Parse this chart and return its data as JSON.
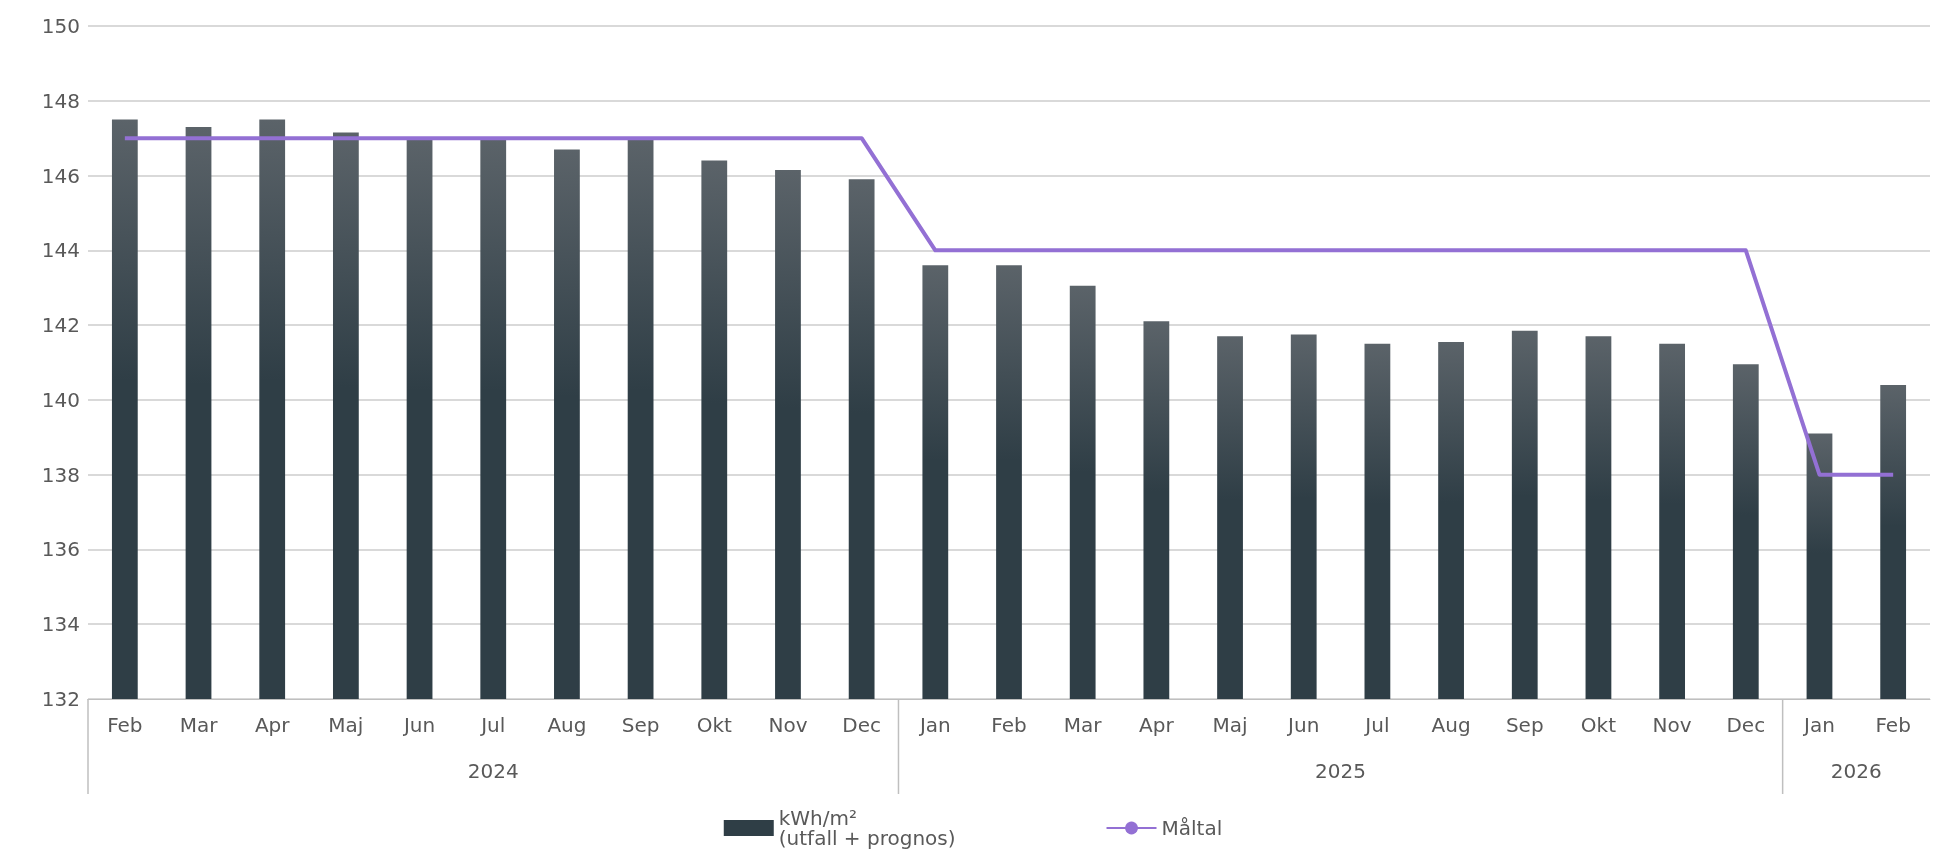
{
  "chart_data": {
    "type": "bar",
    "categories": [
      "Feb",
      "Mar",
      "Apr",
      "Maj",
      "Jun",
      "Jul",
      "Aug",
      "Sep",
      "Okt",
      "Nov",
      "Dec",
      "Jan",
      "Feb",
      "Mar",
      "Apr",
      "Maj",
      "Jun",
      "Jul",
      "Aug",
      "Sep",
      "Okt",
      "Nov",
      "Dec",
      "Jan",
      "Feb"
    ],
    "series": [
      {
        "name": "kWh/m²\n(utfall + prognos)",
        "color": "#2f3e46",
        "values": [
          147.5,
          147.3,
          147.5,
          147.15,
          147.0,
          147.0,
          146.7,
          147.0,
          146.4,
          146.15,
          145.9,
          143.6,
          143.6,
          143.05,
          142.1,
          141.7,
          141.75,
          141.5,
          141.55,
          141.85,
          141.7,
          141.5,
          140.95,
          139.1,
          140.4
        ]
      },
      {
        "name": "Måltal",
        "type": "line",
        "color": "#9370d4",
        "values": [
          147,
          147,
          147,
          147,
          147,
          147,
          147,
          147,
          147,
          147,
          147,
          144,
          144,
          144,
          144,
          144,
          144,
          144,
          144,
          144,
          144,
          144,
          144,
          138,
          138
        ]
      }
    ],
    "annotations": [
      "2024",
      "2025",
      "2026"
    ],
    "ylim": [
      132,
      150
    ],
    "yticks": [
      132,
      134,
      136,
      138,
      140,
      142,
      144,
      146,
      148,
      150
    ],
    "grid": "y",
    "legend": "bottom",
    "marker": "none",
    "line_style": "solid"
  }
}
